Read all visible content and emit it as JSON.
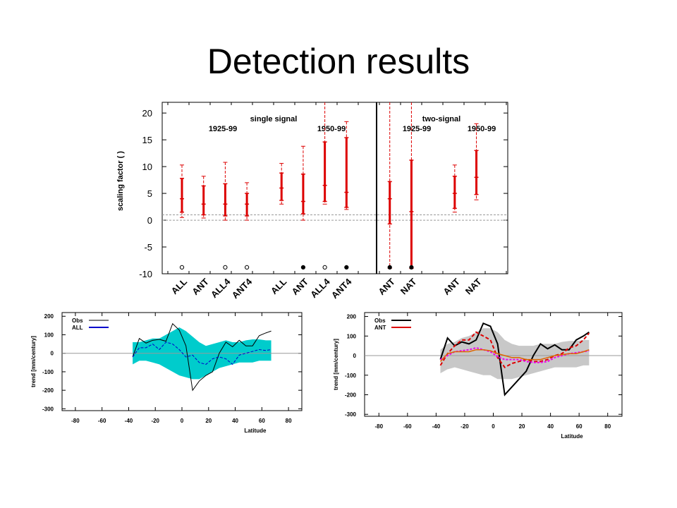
{
  "title": "Detection results",
  "colors": {
    "red": "#dd0000",
    "cyan": "#00cccc",
    "blue": "#0000cc",
    "magenta": "#ee00ee",
    "gray": "#c8c8c8"
  },
  "chart_data": [
    {
      "type": "errorbar",
      "ylabel": "scaling factor (  )",
      "ylim": [
        -10,
        22
      ],
      "yticks": [
        20,
        15,
        10,
        5,
        0,
        -5,
        -10
      ],
      "reference_lines": [
        0,
        1
      ],
      "annotations": [
        "single signal",
        "two-signal",
        "1925-99",
        "1950-99",
        "1925-99",
        "1950-99"
      ],
      "points": [
        {
          "label": "ALL",
          "x": 1,
          "best": 4,
          "lo90": 1.5,
          "hi90": 7.8,
          "lo_ext": 0.5,
          "hi_ext": 10.3,
          "marker": "open"
        },
        {
          "label": "ANT",
          "x": 2,
          "best": 3,
          "lo90": 1,
          "hi90": 6.4,
          "lo_ext": 0.4,
          "hi_ext": 8.2,
          "marker": null
        },
        {
          "label": "ALL4",
          "x": 3,
          "best": 3,
          "lo90": 0.8,
          "hi90": 6.8,
          "lo_ext": 0,
          "hi_ext": 10.8,
          "marker": "open"
        },
        {
          "label": "ANT4",
          "x": 4,
          "best": 3,
          "lo90": 0.8,
          "hi90": 5,
          "lo_ext": 0,
          "hi_ext": 7,
          "marker": "open"
        },
        {
          "label": "ALL",
          "x": 5.6,
          "best": 6,
          "lo90": 3.7,
          "hi90": 8.8,
          "lo_ext": 3,
          "hi_ext": 10.6,
          "marker": null
        },
        {
          "label": "ANT",
          "x": 6.6,
          "best": 3.5,
          "lo90": 1.2,
          "hi90": 8.6,
          "lo_ext": 0,
          "hi_ext": 13.8,
          "marker": "filled"
        },
        {
          "label": "ALL4",
          "x": 7.6,
          "best": 6.5,
          "lo90": 3.5,
          "hi90": 14.6,
          "lo_ext": 3,
          "hi_ext": 22,
          "marker": "open"
        },
        {
          "label": "ANT4",
          "x": 8.6,
          "best": 5.2,
          "lo90": 2.4,
          "hi90": 15.4,
          "lo_ext": 2,
          "hi_ext": 18.4,
          "marker": "filled"
        },
        {
          "label": "ANT",
          "x": 10.6,
          "best": 4,
          "lo90": -0.7,
          "hi90": 7.2,
          "lo_ext": -9,
          "hi_ext": 22,
          "marker": "filled"
        },
        {
          "label": "NAT",
          "x": 11.6,
          "best": 1.6,
          "lo90": -9,
          "hi90": 11.2,
          "lo_ext": -9,
          "hi_ext": 22,
          "marker": "filled"
        },
        {
          "label": "ANT",
          "x": 13.6,
          "best": 5,
          "lo90": 2.2,
          "hi90": 8.2,
          "lo_ext": 1.5,
          "hi_ext": 10.3,
          "marker": null
        },
        {
          "label": "NAT",
          "x": 14.6,
          "best": 8,
          "lo90": 4.8,
          "hi90": 13,
          "lo_ext": 3.8,
          "hi_ext": 18,
          "marker": null
        }
      ]
    },
    {
      "type": "line",
      "xlabel": "Latitude",
      "ylabel": "trend [mm/century]",
      "xlim": [
        -90,
        90
      ],
      "ylim": [
        -310,
        220
      ],
      "xticks": [
        -80,
        -60,
        -40,
        -20,
        0,
        20,
        40,
        60,
        80
      ],
      "yticks": [
        200,
        100,
        0,
        -100,
        -200,
        -300
      ],
      "legend": [
        "Obs",
        "ALL"
      ],
      "legend_position": "top-left",
      "x": [
        -37,
        -32,
        -27,
        -22,
        -17,
        -12,
        -7,
        -2,
        3,
        8,
        13,
        18,
        23,
        28,
        33,
        38,
        43,
        48,
        53,
        58,
        63,
        67
      ],
      "series": [
        {
          "name": "Obs",
          "values": [
            -20,
            80,
            55,
            70,
            75,
            65,
            160,
            125,
            40,
            -200,
            -150,
            -120,
            -100,
            0,
            60,
            35,
            70,
            40,
            40,
            95,
            110,
            120
          ]
        },
        {
          "name": "ALL",
          "values": [
            -20,
            30,
            30,
            50,
            20,
            60,
            50,
            20,
            -20,
            -10,
            -50,
            -60,
            -30,
            -20,
            -30,
            -60,
            -10,
            0,
            10,
            20,
            15,
            20
          ]
        },
        {
          "name": "ALL range",
          "upper": [
            60,
            60,
            70,
            80,
            80,
            100,
            120,
            140,
            120,
            90,
            60,
            40,
            50,
            60,
            70,
            60,
            60,
            70,
            75,
            75,
            70,
            70
          ],
          "lower": [
            -60,
            -40,
            -40,
            -50,
            -60,
            -80,
            -100,
            -120,
            -130,
            -140,
            -140,
            -120,
            -100,
            -80,
            -70,
            -60,
            -50,
            -50,
            -50,
            -40,
            -40,
            -40
          ]
        }
      ]
    },
    {
      "type": "line",
      "xlabel": "Latitude",
      "ylabel": "trend [mm/century]",
      "xlim": [
        -90,
        90
      ],
      "ylim": [
        -310,
        220
      ],
      "xticks": [
        -80,
        -60,
        -40,
        -20,
        0,
        20,
        40,
        60,
        80
      ],
      "yticks": [
        200,
        100,
        0,
        -100,
        -200,
        -300
      ],
      "legend": [
        "Obs",
        "ANT"
      ],
      "legend_position": "top-left",
      "x": [
        -37,
        -32,
        -27,
        -22,
        -17,
        -12,
        -7,
        -2,
        3,
        8,
        13,
        18,
        23,
        28,
        33,
        38,
        43,
        48,
        53,
        58,
        63,
        67
      ],
      "series": [
        {
          "name": "Obs",
          "values": [
            -20,
            90,
            50,
            70,
            60,
            80,
            165,
            150,
            60,
            -200,
            -160,
            -120,
            -80,
            0,
            60,
            35,
            55,
            30,
            30,
            80,
            100,
            120
          ]
        },
        {
          "name": "ANT",
          "values": [
            -50,
            10,
            50,
            80,
            80,
            120,
            100,
            80,
            -10,
            -60,
            -40,
            -30,
            -20,
            -30,
            -30,
            -20,
            0,
            10,
            40,
            50,
            80,
            115
          ]
        },
        {
          "name": "ANT-2",
          "values": [
            -20,
            0,
            20,
            25,
            30,
            40,
            30,
            20,
            -5,
            -20,
            -20,
            -20,
            -30,
            -35,
            -35,
            -30,
            -10,
            0,
            10,
            15,
            20,
            25
          ]
        },
        {
          "name": "ANT-3",
          "values": [
            -30,
            10,
            20,
            20,
            20,
            30,
            30,
            25,
            10,
            0,
            -10,
            -10,
            -20,
            -20,
            -20,
            -10,
            0,
            5,
            10,
            10,
            20,
            30
          ]
        },
        {
          "name": "ANT range",
          "upper": [
            30,
            60,
            70,
            90,
            100,
            120,
            140,
            140,
            120,
            80,
            60,
            50,
            50,
            50,
            60,
            60,
            60,
            70,
            75,
            75,
            80,
            80
          ],
          "lower": [
            -90,
            -70,
            -60,
            -70,
            -80,
            -90,
            -100,
            -100,
            -120,
            -120,
            -120,
            -110,
            -100,
            -90,
            -80,
            -70,
            -60,
            -60,
            -60,
            -60,
            -50,
            -50
          ]
        }
      ]
    }
  ]
}
